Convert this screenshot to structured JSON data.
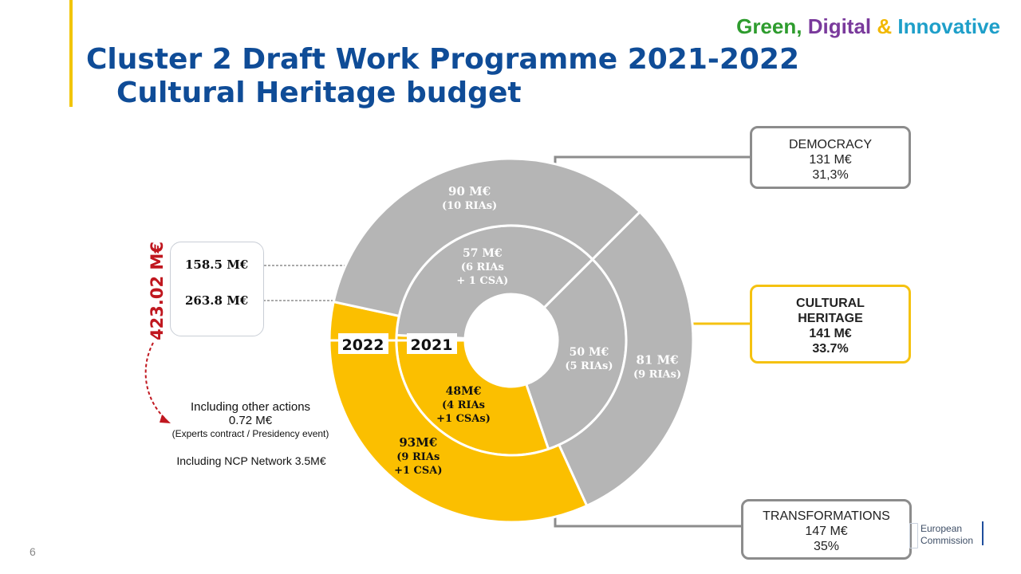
{
  "slogan": {
    "green": "Green,",
    "digital": "Digital",
    "amp": "&",
    "innovative": "Innovative",
    "colors": {
      "green": "#2e9c2e",
      "digital": "#7a3a9c",
      "amp": "#f2b800",
      "innovative": "#1e9fc9"
    }
  },
  "title": {
    "line1": "Cluster 2 Draft Work Programme 2021-2022",
    "line2": "Cultural Heritage budget"
  },
  "callouts": {
    "democracy": {
      "label": "DEMOCRACY",
      "amount": "131 M€",
      "share": "31,3%"
    },
    "cultural_heritage": {
      "label1": "CULTURAL",
      "label2": "HERITAGE",
      "amount": "141 M€",
      "share": "33.7%"
    },
    "transformations": {
      "label": "TRANSFORMATIONS",
      "amount": "147 M€",
      "share": "35%"
    }
  },
  "totals": {
    "grand_total": "423.02 M€",
    "year_2021": "158.5 M€",
    "year_2022": "263.8 M€"
  },
  "notes": {
    "other_actions_line1": "Including  other actions",
    "other_actions_line2": "0.72 M€",
    "other_actions_sub": "(Experts contract / Presidency event)",
    "ncp": "Including  NCP Network 3.5M€"
  },
  "page_number": "6",
  "logo": {
    "line1": "European",
    "line2": "Commission"
  },
  "chart_data": {
    "type": "pie",
    "title": "",
    "rings": [
      {
        "name": "2021",
        "slices": [
          {
            "value": 50,
            "label": "50 M€",
            "sub": [
              "(5 RIAs)"
            ],
            "color": "#b5b5b5"
          },
          {
            "value": 48,
            "label": "48M€",
            "sub": [
              "(4 RIAs",
              "+1 CSAs)"
            ],
            "color": "#fbbf00"
          },
          {
            "value": 57,
            "label": "57 M€",
            "sub": [
              "(6 RIAs",
              "+ 1 CSA)"
            ],
            "color": "#b5b5b5"
          }
        ]
      },
      {
        "name": "2022",
        "slices": [
          {
            "value": 81,
            "label": "81 M€",
            "sub": [
              "(9 RIAs)"
            ],
            "color": "#b5b5b5"
          },
          {
            "value": 93,
            "label": "93M€",
            "sub": [
              "(9 RIAs",
              "+1 CSA)"
            ],
            "color": "#fbbf00"
          },
          {
            "value": 90,
            "label": "90 M€",
            "sub": [
              "(10 RIAs)"
            ],
            "color": "#b5b5b5"
          }
        ]
      }
    ]
  }
}
